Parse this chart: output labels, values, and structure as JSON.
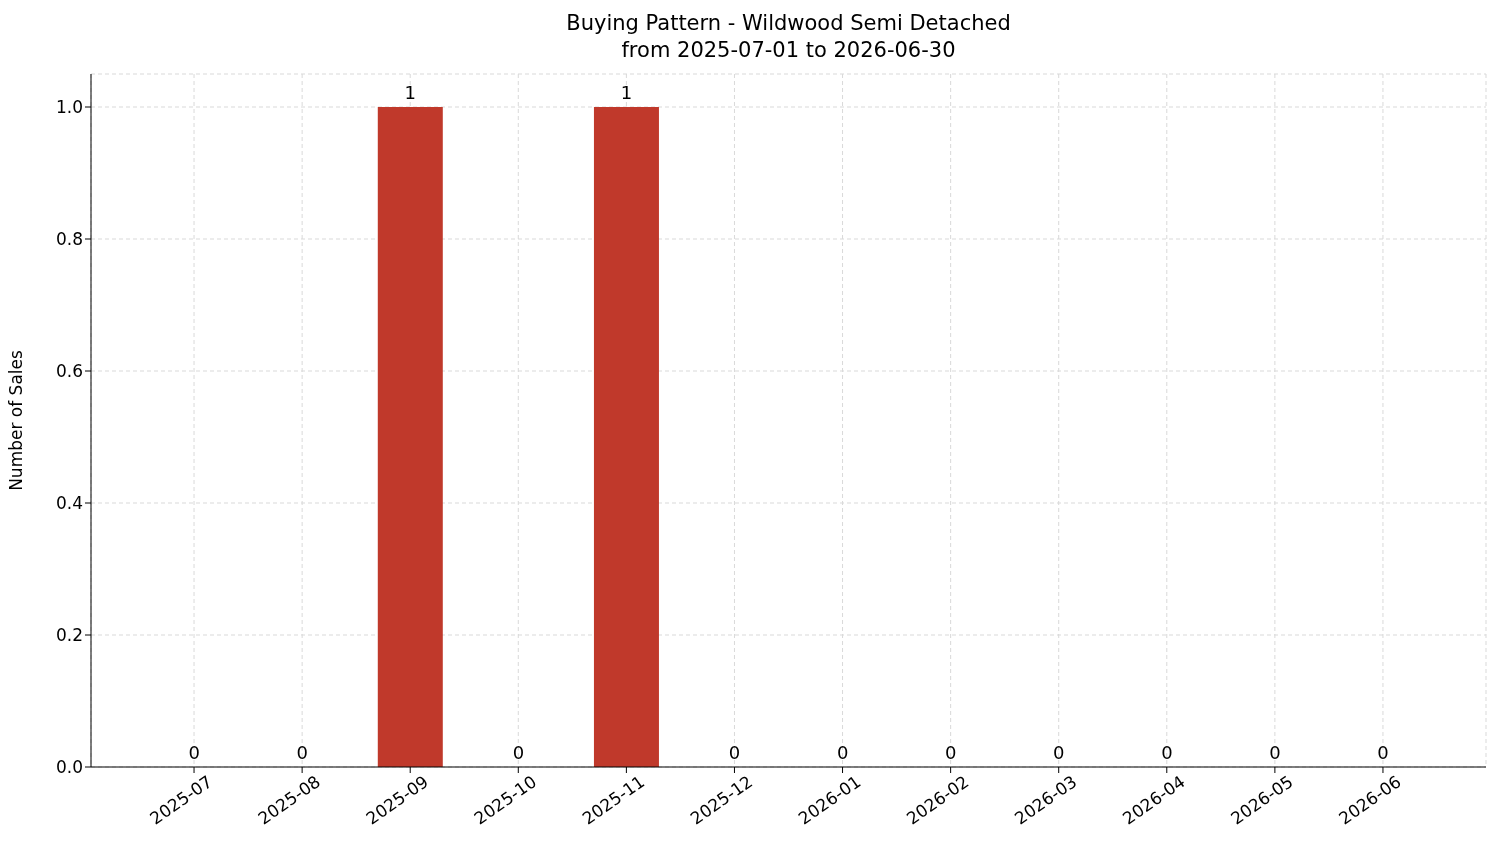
{
  "chart_data": {
    "type": "bar",
    "title": "Buying Pattern - Wildwood Semi Detached",
    "subtitle": "from 2025-07-01 to 2026-06-30",
    "ylabel": "Number of Sales",
    "categories": [
      "2025-07",
      "2025-08",
      "2025-09",
      "2025-10",
      "2025-11",
      "2025-12",
      "2026-01",
      "2026-02",
      "2026-03",
      "2026-04",
      "2026-05",
      "2026-06"
    ],
    "values": [
      0,
      0,
      1,
      0,
      1,
      0,
      0,
      0,
      0,
      0,
      0,
      0
    ],
    "color": "#c0392b",
    "ylim": [
      0,
      1.05
    ],
    "yticks": [
      {
        "value": 0,
        "label": "0.0"
      },
      {
        "value": 0.2,
        "label": "0.2"
      },
      {
        "value": 0.4,
        "label": "0.4"
      },
      {
        "value": 0.6,
        "label": "0.6"
      },
      {
        "value": 0.8,
        "label": "0.8"
      },
      {
        "value": 1,
        "label": "1.0"
      }
    ],
    "grid": true,
    "data_labels": true
  }
}
